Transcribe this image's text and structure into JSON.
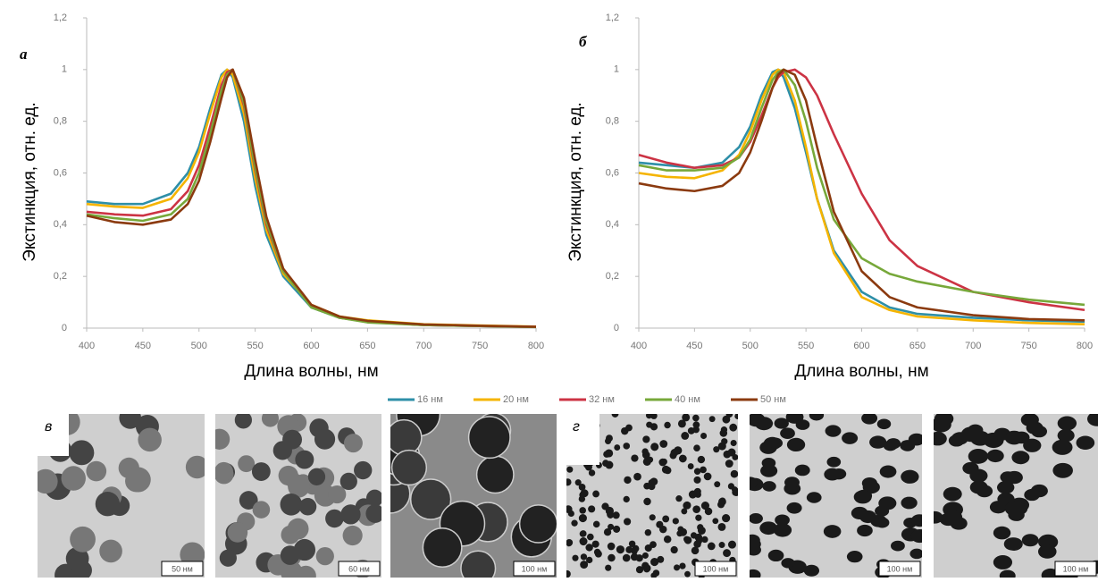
{
  "chart_data": [
    {
      "type": "line",
      "panel_label": "а",
      "ylabel": "Экстинкция, отн. ед.",
      "xlabel": "Длина волны, нм",
      "x": [
        400,
        425,
        450,
        475,
        490,
        500,
        510,
        520,
        525,
        530,
        540,
        550,
        560,
        575,
        600,
        625,
        650,
        700,
        750,
        800
      ],
      "xlim": [
        400,
        800
      ],
      "xticks": [
        400,
        450,
        500,
        550,
        600,
        650,
        700,
        750,
        800
      ],
      "ylim": [
        0,
        1.2
      ],
      "yticks": [
        0,
        {
          "value": 0.2,
          "label": "0,2"
        },
        {
          "value": 0.4,
          "label": "0,4"
        },
        {
          "value": 0.6,
          "label": "0,6"
        },
        {
          "value": 0.8,
          "label": "0,8"
        },
        1,
        {
          "value": 1.2,
          "label": "1,2"
        }
      ],
      "series": [
        {
          "name": "16 нм",
          "color": "#2e8fa8",
          "values": [
            0.49,
            0.48,
            0.48,
            0.52,
            0.6,
            0.7,
            0.85,
            0.98,
            1.0,
            0.97,
            0.8,
            0.55,
            0.36,
            0.2,
            0.08,
            0.04,
            0.025,
            0.012,
            0.008,
            0.005
          ]
        },
        {
          "name": "20 нм",
          "color": "#f5b400",
          "values": [
            0.48,
            0.47,
            0.465,
            0.5,
            0.58,
            0.68,
            0.83,
            0.97,
            1.0,
            0.98,
            0.83,
            0.58,
            0.38,
            0.21,
            0.09,
            0.045,
            0.03,
            0.015,
            0.01,
            0.006
          ]
        },
        {
          "name": "32 нм",
          "color": "#cc3344",
          "values": [
            0.45,
            0.44,
            0.435,
            0.46,
            0.53,
            0.63,
            0.78,
            0.94,
            0.99,
            1.0,
            0.86,
            0.61,
            0.4,
            0.22,
            0.085,
            0.04,
            0.025,
            0.012,
            0.008,
            0.005
          ]
        },
        {
          "name": "40 нм",
          "color": "#77a83a",
          "values": [
            0.44,
            0.425,
            0.415,
            0.44,
            0.5,
            0.6,
            0.75,
            0.92,
            0.98,
            1.0,
            0.87,
            0.62,
            0.41,
            0.22,
            0.08,
            0.04,
            0.022,
            0.012,
            0.008,
            0.004
          ]
        },
        {
          "name": "50 нм",
          "color": "#8b3a0f",
          "values": [
            0.435,
            0.41,
            0.4,
            0.42,
            0.48,
            0.57,
            0.72,
            0.89,
            0.97,
            1.0,
            0.89,
            0.65,
            0.43,
            0.23,
            0.09,
            0.045,
            0.028,
            0.014,
            0.009,
            0.005
          ]
        }
      ]
    },
    {
      "type": "line",
      "panel_label": "б",
      "ylabel": "Экстинкция, отн. ед.",
      "xlabel": "Длина волны, нм",
      "x": [
        400,
        425,
        450,
        475,
        490,
        500,
        510,
        520,
        525,
        530,
        540,
        550,
        560,
        575,
        600,
        625,
        650,
        700,
        750,
        800
      ],
      "xlim": [
        400,
        800
      ],
      "xticks": [
        400,
        450,
        500,
        550,
        600,
        650,
        700,
        750,
        800
      ],
      "ylim": [
        0,
        1.2
      ],
      "yticks": [
        0,
        {
          "value": 0.2,
          "label": "0,2"
        },
        {
          "value": 0.4,
          "label": "0,4"
        },
        {
          "value": 0.6,
          "label": "0,6"
        },
        {
          "value": 0.8,
          "label": "0,8"
        },
        1,
        {
          "value": 1.2,
          "label": "1,2"
        }
      ],
      "series": [
        {
          "color": "#2e8fa8",
          "values": [
            0.64,
            0.63,
            0.62,
            0.64,
            0.7,
            0.78,
            0.9,
            0.99,
            1.0,
            0.97,
            0.85,
            0.68,
            0.5,
            0.3,
            0.14,
            0.08,
            0.055,
            0.04,
            0.03,
            0.025
          ]
        },
        {
          "color": "#f5b400",
          "values": [
            0.6,
            0.585,
            0.58,
            0.61,
            0.67,
            0.76,
            0.88,
            0.98,
            1.0,
            0.99,
            0.88,
            0.7,
            0.5,
            0.29,
            0.12,
            0.07,
            0.045,
            0.03,
            0.02,
            0.015
          ]
        },
        {
          "color": "#cc3344",
          "values": [
            0.67,
            0.64,
            0.62,
            0.63,
            0.66,
            0.72,
            0.82,
            0.93,
            0.97,
            0.99,
            1.0,
            0.97,
            0.9,
            0.75,
            0.52,
            0.34,
            0.24,
            0.14,
            0.1,
            0.07
          ]
        },
        {
          "color": "#77a83a",
          "values": [
            0.63,
            0.61,
            0.61,
            0.62,
            0.66,
            0.73,
            0.85,
            0.96,
            0.99,
            1.0,
            0.94,
            0.8,
            0.62,
            0.42,
            0.27,
            0.21,
            0.18,
            0.14,
            0.11,
            0.09
          ]
        },
        {
          "color": "#8b3a0f",
          "values": [
            0.56,
            0.54,
            0.53,
            0.55,
            0.6,
            0.68,
            0.8,
            0.93,
            0.98,
            1.0,
            0.98,
            0.88,
            0.7,
            0.45,
            0.22,
            0.12,
            0.08,
            0.05,
            0.035,
            0.03
          ]
        }
      ]
    }
  ],
  "images": {
    "panel_labels": [
      "в",
      "г"
    ],
    "scale_bars": [
      "50 нм",
      "60 нм",
      "100 нм",
      "100 нм",
      "100 нм",
      "100 нм"
    ]
  }
}
